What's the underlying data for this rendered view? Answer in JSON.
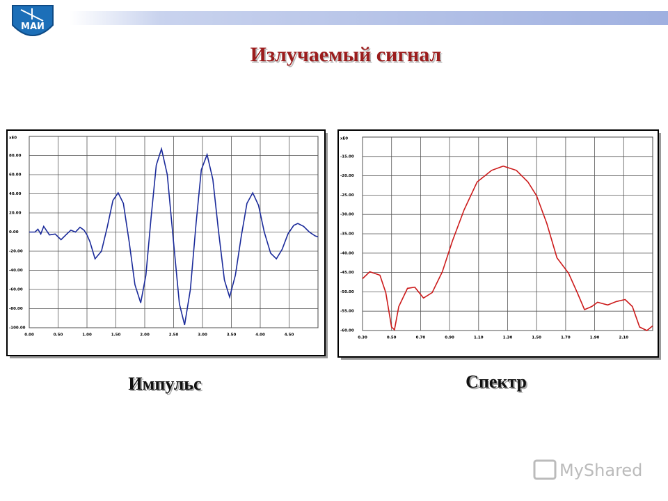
{
  "slide": {
    "title": "Излучаемый сигнал",
    "logo": "МАИ",
    "watermark": "MyShared"
  },
  "chart_data": [
    {
      "type": "line",
      "title": "Импульс",
      "y_label": "xE0",
      "color": "#1a2a9a",
      "grid": true,
      "xlim": [
        0,
        5
      ],
      "ylim": [
        -100,
        100
      ],
      "xticks": [
        {
          "value": 0,
          "label": "0.00"
        },
        {
          "value": 0.5,
          "label": "0.50"
        },
        {
          "value": 1,
          "label": "1.00"
        },
        {
          "value": 1.5,
          "label": "1.50"
        },
        {
          "value": 2,
          "label": "2.00"
        },
        {
          "value": 2.5,
          "label": "2.50"
        },
        {
          "value": 3,
          "label": "3.00"
        },
        {
          "value": 3.5,
          "label": "3.50"
        },
        {
          "value": 4,
          "label": "4.00"
        },
        {
          "value": 4.5,
          "label": "4.50"
        }
      ],
      "yticks": [
        {
          "value": 80,
          "label": "80.00"
        },
        {
          "value": 60,
          "label": "60.00"
        },
        {
          "value": 40,
          "label": "40.00"
        },
        {
          "value": 20,
          "label": "20.00"
        },
        {
          "value": 0,
          "label": "0.00"
        },
        {
          "value": -20,
          "label": "-20.00"
        },
        {
          "value": -40,
          "label": "-40.00"
        },
        {
          "value": -60,
          "label": "-60.00"
        },
        {
          "value": -80,
          "label": "-80.00"
        },
        {
          "value": -100,
          "label": "-100.00"
        }
      ],
      "x": [
        0,
        0.1,
        0.15,
        0.2,
        0.25,
        0.35,
        0.45,
        0.55,
        0.65,
        0.72,
        0.8,
        0.88,
        0.95,
        1.0,
        1.05,
        1.14,
        1.25,
        1.35,
        1.45,
        1.54,
        1.63,
        1.73,
        1.83,
        1.93,
        2.02,
        2.11,
        2.2,
        2.29,
        2.39,
        2.49,
        2.6,
        2.69,
        2.79,
        2.89,
        2.98,
        3.08,
        3.18,
        3.28,
        3.38,
        3.47,
        3.57,
        3.67,
        3.77,
        3.87,
        3.97,
        4.07,
        4.18,
        4.28,
        4.38,
        4.48,
        4.58,
        4.65,
        4.75,
        4.85,
        4.95,
        5.0
      ],
      "values": [
        0,
        0,
        3,
        -2,
        6,
        -3,
        -2,
        -8,
        -2,
        2,
        0,
        5,
        2,
        -3,
        -10,
        -28,
        -20,
        5,
        33,
        41,
        30,
        -10,
        -55,
        -74,
        -45,
        15,
        70,
        87,
        60,
        -5,
        -75,
        -97,
        -60,
        10,
        65,
        81,
        55,
        0,
        -50,
        -68,
        -45,
        -5,
        30,
        41,
        28,
        0,
        -22,
        -28,
        -18,
        -2,
        7,
        9,
        6,
        0,
        -4,
        -5
      ]
    },
    {
      "type": "line",
      "title": "Спектр",
      "y_label": "xE0",
      "color": "#cc1a1a",
      "grid": true,
      "xlim": [
        0.3,
        2.3
      ],
      "ylim": [
        -60,
        -10
      ],
      "xticks": [
        {
          "value": 0.3,
          "label": "0.30"
        },
        {
          "value": 0.5,
          "label": "0.50"
        },
        {
          "value": 0.7,
          "label": "0.70"
        },
        {
          "value": 0.9,
          "label": "0.90"
        },
        {
          "value": 1.1,
          "label": "1.10"
        },
        {
          "value": 1.3,
          "label": "1.30"
        },
        {
          "value": 1.5,
          "label": "1.50"
        },
        {
          "value": 1.7,
          "label": "1.70"
        },
        {
          "value": 1.9,
          "label": "1.90"
        },
        {
          "value": 2.1,
          "label": "2.10"
        }
      ],
      "yticks": [
        {
          "value": -15,
          "label": "-15.00"
        },
        {
          "value": -20,
          "label": "-20.00"
        },
        {
          "value": -25,
          "label": "-25.00"
        },
        {
          "value": -30,
          "label": "-30.00"
        },
        {
          "value": -35,
          "label": "-35.00"
        },
        {
          "value": -40,
          "label": "-40.00"
        },
        {
          "value": -45,
          "label": "-45.00"
        },
        {
          "value": -50,
          "label": "-50.00"
        },
        {
          "value": -55,
          "label": "-55.00"
        },
        {
          "value": -60,
          "label": "-60.00"
        }
      ],
      "x": [
        0.3,
        0.35,
        0.42,
        0.46,
        0.5,
        0.52,
        0.55,
        0.61,
        0.66,
        0.72,
        0.78,
        0.85,
        0.92,
        1.0,
        1.09,
        1.19,
        1.27,
        1.36,
        1.44,
        1.5,
        1.57,
        1.64,
        1.72,
        1.78,
        1.83,
        1.88,
        1.92,
        1.99,
        2.05,
        2.11,
        2.16,
        2.21,
        2.26,
        2.3
      ],
      "values": [
        -46.6,
        -44.8,
        -45.7,
        -50.2,
        -59.1,
        -59.8,
        -53.8,
        -49.1,
        -48.8,
        -51.6,
        -50.2,
        -44.8,
        -36.8,
        -28.8,
        -21.6,
        -18.6,
        -17.5,
        -18.6,
        -21.6,
        -25.2,
        -32.3,
        -41.2,
        -45.2,
        -50.2,
        -54.6,
        -53.8,
        -52.7,
        -53.4,
        -52.5,
        -52.0,
        -53.8,
        -59.1,
        -60.0,
        -58.8
      ]
    }
  ]
}
